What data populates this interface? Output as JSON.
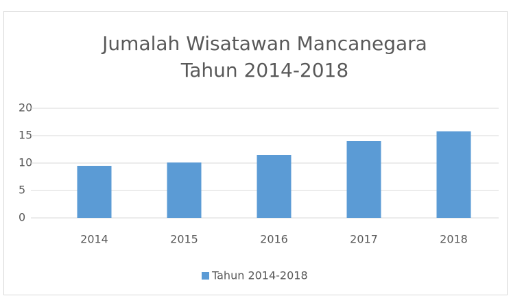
{
  "chart_data": {
    "type": "bar",
    "title": [
      "Jumalah Wisatawan Mancanegara",
      "Tahun 2014-2018"
    ],
    "categories": [
      "2014",
      "2015",
      "2016",
      "2017",
      "2018"
    ],
    "series": [
      {
        "name": "Tahun 2014-2018",
        "color": "#5b9bd5",
        "values": [
          9.5,
          10.1,
          11.5,
          14.0,
          15.8
        ]
      }
    ],
    "ylim": [
      0,
      20
    ],
    "yticks": [
      0,
      5,
      10,
      15,
      20
    ],
    "grid": true,
    "legend": "bottom"
  }
}
